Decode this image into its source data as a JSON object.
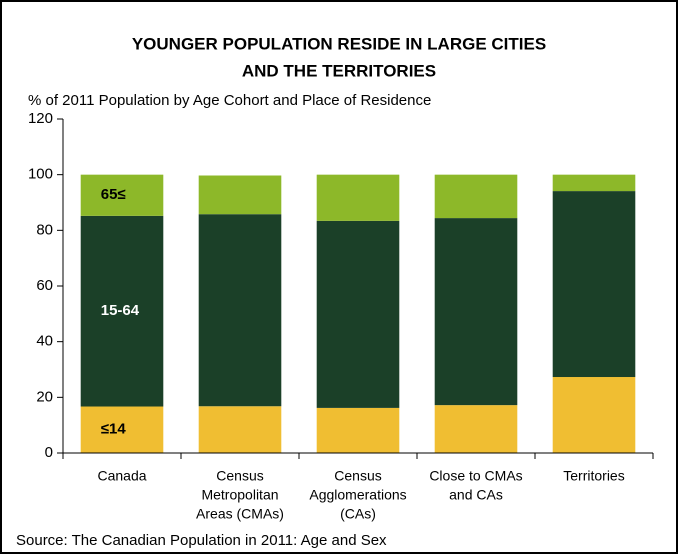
{
  "chart_data": {
    "type": "stacked_bar",
    "title": [
      "YOUNGER POPULATION RESIDE IN LARGE CITIES",
      "AND THE TERRITORIES"
    ],
    "subtitle": "% of 2011 Population by Age Cohort and Place of Residence",
    "source": "Source: The Canadian Population in 2011: Age and Sex",
    "categories": [
      [
        "Canada"
      ],
      [
        "Census",
        "Metropolitan",
        "Areas (CMAs)"
      ],
      [
        "Census",
        "Agglomerations",
        "(CAs)"
      ],
      [
        "Close to CMAs",
        "and CAs"
      ],
      [
        "Territories"
      ]
    ],
    "series": [
      {
        "name": "≤14",
        "color": "#f0be32",
        "label_color": "#000000",
        "values": [
          16.7,
          16.8,
          16.2,
          17.2,
          27.3
        ]
      },
      {
        "name": "15-64",
        "color": "#1b4028",
        "label_color": "#ffffff",
        "values": [
          68.5,
          69.0,
          67.2,
          67.2,
          66.8
        ]
      },
      {
        "name": "65≤",
        "color": "#8db829",
        "label_color": "#000000",
        "values": [
          14.8,
          13.9,
          16.6,
          15.6,
          5.9
        ]
      }
    ],
    "ylim": [
      0,
      120
    ],
    "yticks": [
      0,
      20,
      40,
      60,
      80,
      100,
      120
    ]
  }
}
